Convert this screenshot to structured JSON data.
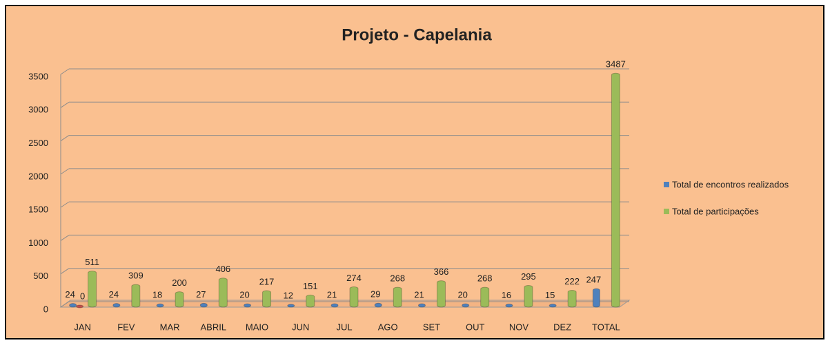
{
  "chart_data": {
    "type": "bar",
    "title": "Projeto - Capelania",
    "categories": [
      "JAN",
      "FEV",
      "MAR",
      "ABRIL",
      "MAIO",
      "JUN",
      "JUL",
      "AGO",
      "SET",
      "OUT",
      "NOV",
      "DEZ",
      "TOTAL"
    ],
    "series": [
      {
        "name": "Total de encontros realizados",
        "color": "#4f81bd",
        "values": [
          24,
          24,
          18,
          27,
          20,
          12,
          21,
          29,
          21,
          20,
          16,
          15,
          247
        ]
      },
      {
        "color": "#c0504d",
        "values": [
          0,
          null,
          null,
          null,
          null,
          null,
          null,
          null,
          null,
          null,
          null,
          null,
          null
        ]
      },
      {
        "name": "Total de participações",
        "color": "#9bbb59",
        "values": [
          511,
          309,
          200,
          406,
          217,
          151,
          274,
          268,
          366,
          268,
          295,
          222,
          3487
        ]
      }
    ],
    "ylim": [
      0,
      3500
    ],
    "yticks": [
      0,
      500,
      1000,
      1500,
      2000,
      2500,
      3000,
      3500
    ],
    "grid": true,
    "legend": "right"
  }
}
